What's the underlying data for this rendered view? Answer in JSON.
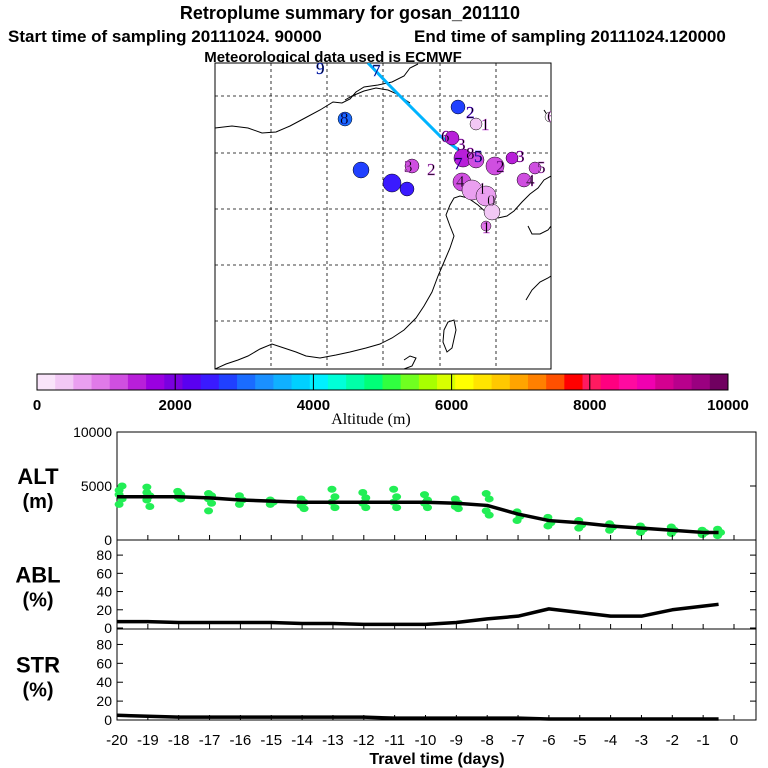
{
  "header": {
    "title": "Retroplume summary for gosan_201110",
    "start_label": "Start time of sampling 20111024. 90000",
    "end_label": "End time of sampling 20111024.120000",
    "met_label": "Meteorological data used is ECMWF"
  },
  "colorbar": {
    "label": "Altitude (m)",
    "ticks": [
      "0",
      "2000",
      "4000",
      "6000",
      "8000",
      "10000"
    ],
    "colors": [
      "#f9e4fa",
      "#f2c8f5",
      "#ea9ff0",
      "#e07ae8",
      "#cf4fe0",
      "#b81fd9",
      "#9a00e0",
      "#7a00e0",
      "#5a00f0",
      "#3a1aff",
      "#2040ff",
      "#1a6cff",
      "#1a90ff",
      "#10b0ff",
      "#00d0ff",
      "#00f0ff",
      "#00ffd8",
      "#00ffa8",
      "#00ff78",
      "#30ff40",
      "#70ff20",
      "#a8ff00",
      "#d8ff00",
      "#ffff00",
      "#ffe400",
      "#ffc800",
      "#ffa400",
      "#ff8000",
      "#ff5000",
      "#ff0000",
      "#ff1a60",
      "#ff0080",
      "#ff0aa0",
      "#f000b0",
      "#d40090",
      "#b8008c",
      "#9a0080",
      "#700060"
    ]
  },
  "map": {
    "labels": [
      {
        "text": "9",
        "color": "#2040ff"
      },
      {
        "text": "7",
        "color": "#2040ff"
      },
      {
        "text": "8",
        "color": "#2040ff"
      },
      {
        "text": "2",
        "color": "#5a00f0"
      },
      {
        "text": "1",
        "color": "#cf4fe0"
      },
      {
        "text": "6",
        "color": "#b81fd9"
      },
      {
        "text": "3",
        "color": "#b81fd9"
      },
      {
        "text": "7",
        "color": "#5a00f0"
      },
      {
        "text": "3",
        "color": "#cf4fe0"
      },
      {
        "text": "2",
        "color": "#cf4fe0"
      },
      {
        "text": "5",
        "color": "#3a1aff"
      },
      {
        "text": "3",
        "color": "#b81fd9"
      },
      {
        "text": "4",
        "color": "#cf4fe0"
      },
      {
        "text": "1",
        "color": "#ea9ff0"
      },
      {
        "text": "0",
        "color": "#ea9ff0"
      },
      {
        "text": "1",
        "color": "#cf4fe0"
      },
      {
        "text": "2",
        "color": "#b81fd9"
      },
      {
        "text": "4",
        "color": "#cf4fe0"
      },
      {
        "text": "8",
        "color": "#b81fd9"
      },
      {
        "text": "5",
        "color": "#cf4fe0"
      },
      {
        "text": "6",
        "color": "#e07ae8"
      }
    ]
  },
  "chart_data": [
    {
      "type": "scatter+line",
      "name": "ALT",
      "ylabel": "ALT",
      "yunit": "(m)",
      "ylim": [
        0,
        10000
      ],
      "yticks": [
        "10000",
        "5000",
        "0"
      ],
      "xlim": [
        -20,
        0
      ],
      "x": [
        -20,
        -19,
        -18,
        -17,
        -16,
        -15,
        -14,
        -13,
        -12,
        -11,
        -10,
        -9,
        -8,
        -7,
        -6,
        -5,
        -4,
        -3,
        -2,
        -1,
        -0.5
      ],
      "mean_line": [
        4000,
        4000,
        4000,
        3900,
        3700,
        3600,
        3500,
        3500,
        3500,
        3500,
        3500,
        3400,
        3200,
        2400,
        1800,
        1600,
        1300,
        1100,
        900,
        700,
        700
      ],
      "scatter": [
        {
          "x": -19.9,
          "y": [
            4200,
            3800,
            3300,
            5000,
            4600
          ]
        },
        {
          "x": -19,
          "y": [
            4400,
            4100,
            3700,
            3100,
            4900
          ]
        },
        {
          "x": -18,
          "y": [
            4500,
            4200,
            4000,
            3800
          ]
        },
        {
          "x": -17,
          "y": [
            4300,
            4100,
            3800,
            3400,
            2700
          ]
        },
        {
          "x": -16,
          "y": [
            4100,
            3700,
            3300
          ]
        },
        {
          "x": -15,
          "y": [
            3700,
            3500,
            3300
          ]
        },
        {
          "x": -14,
          "y": [
            3800,
            3500,
            3200,
            2900
          ]
        },
        {
          "x": -13,
          "y": [
            4700,
            4000,
            3500,
            3000
          ]
        },
        {
          "x": -12,
          "y": [
            4400,
            3900,
            3400,
            3000
          ]
        },
        {
          "x": -11,
          "y": [
            4700,
            4000,
            3500,
            3000
          ]
        },
        {
          "x": -10,
          "y": [
            4200,
            3700,
            3400,
            3000
          ]
        },
        {
          "x": -9,
          "y": [
            3800,
            3400,
            3100,
            2900
          ]
        },
        {
          "x": -8,
          "y": [
            4300,
            3800,
            2700,
            2300
          ]
        },
        {
          "x": -7,
          "y": [
            2600,
            2200,
            1800
          ]
        },
        {
          "x": -6,
          "y": [
            2100,
            1600,
            1300
          ]
        },
        {
          "x": -5,
          "y": [
            1800,
            1400,
            1100
          ]
        },
        {
          "x": -4,
          "y": [
            1500,
            1200,
            900
          ]
        },
        {
          "x": -3,
          "y": [
            1300,
            1000,
            700
          ]
        },
        {
          "x": -2,
          "y": [
            1200,
            900,
            600
          ]
        },
        {
          "x": -1,
          "y": [
            900,
            700,
            500
          ]
        },
        {
          "x": -0.5,
          "y": [
            1000,
            700,
            400
          ]
        }
      ],
      "scatter_color": "#22ee55"
    },
    {
      "type": "line",
      "name": "ABL",
      "ylabel": "ABL",
      "yunit": "(%)",
      "ylim": [
        0,
        90
      ],
      "yticks": [
        "80",
        "60",
        "40",
        "20",
        "0"
      ],
      "xlim": [
        -20,
        0
      ],
      "x": [
        -20,
        -19,
        -18,
        -17,
        -16,
        -15,
        -14,
        -13,
        -12,
        -11,
        -10,
        -9,
        -8,
        -7,
        -6,
        -5,
        -4,
        -3,
        -2,
        -1,
        -0.5
      ],
      "values": [
        7,
        7,
        6,
        6,
        6,
        6,
        5,
        5,
        4,
        4,
        4,
        6,
        10,
        13,
        21,
        17,
        13,
        13,
        20,
        24,
        26
      ]
    },
    {
      "type": "line",
      "name": "STR",
      "ylabel": "STR",
      "yunit": "(%)",
      "ylim": [
        0,
        90
      ],
      "yticks": [
        "80",
        "60",
        "40",
        "20",
        "0"
      ],
      "xlim": [
        -20,
        0
      ],
      "x": [
        -20,
        -19,
        -18,
        -17,
        -16,
        -15,
        -14,
        -13,
        -12,
        -11,
        -10,
        -9,
        -8,
        -7,
        -6,
        -5,
        -4,
        -3,
        -2,
        -1,
        -0.5
      ],
      "values": [
        5,
        4,
        3,
        3,
        3,
        3,
        3,
        3,
        3,
        2,
        2,
        2,
        2,
        2,
        1,
        1,
        1,
        1,
        1,
        1,
        1
      ]
    }
  ],
  "xaxis": {
    "label": "Travel time (days)",
    "ticks": [
      "-20",
      "-19",
      "-18",
      "-17",
      "-16",
      "-15",
      "-14",
      "-13",
      "-12",
      "-11",
      "-10",
      "-9",
      "-8",
      "-7",
      "-6",
      "-5",
      "-4",
      "-3",
      "-2",
      "-1",
      "0"
    ]
  }
}
